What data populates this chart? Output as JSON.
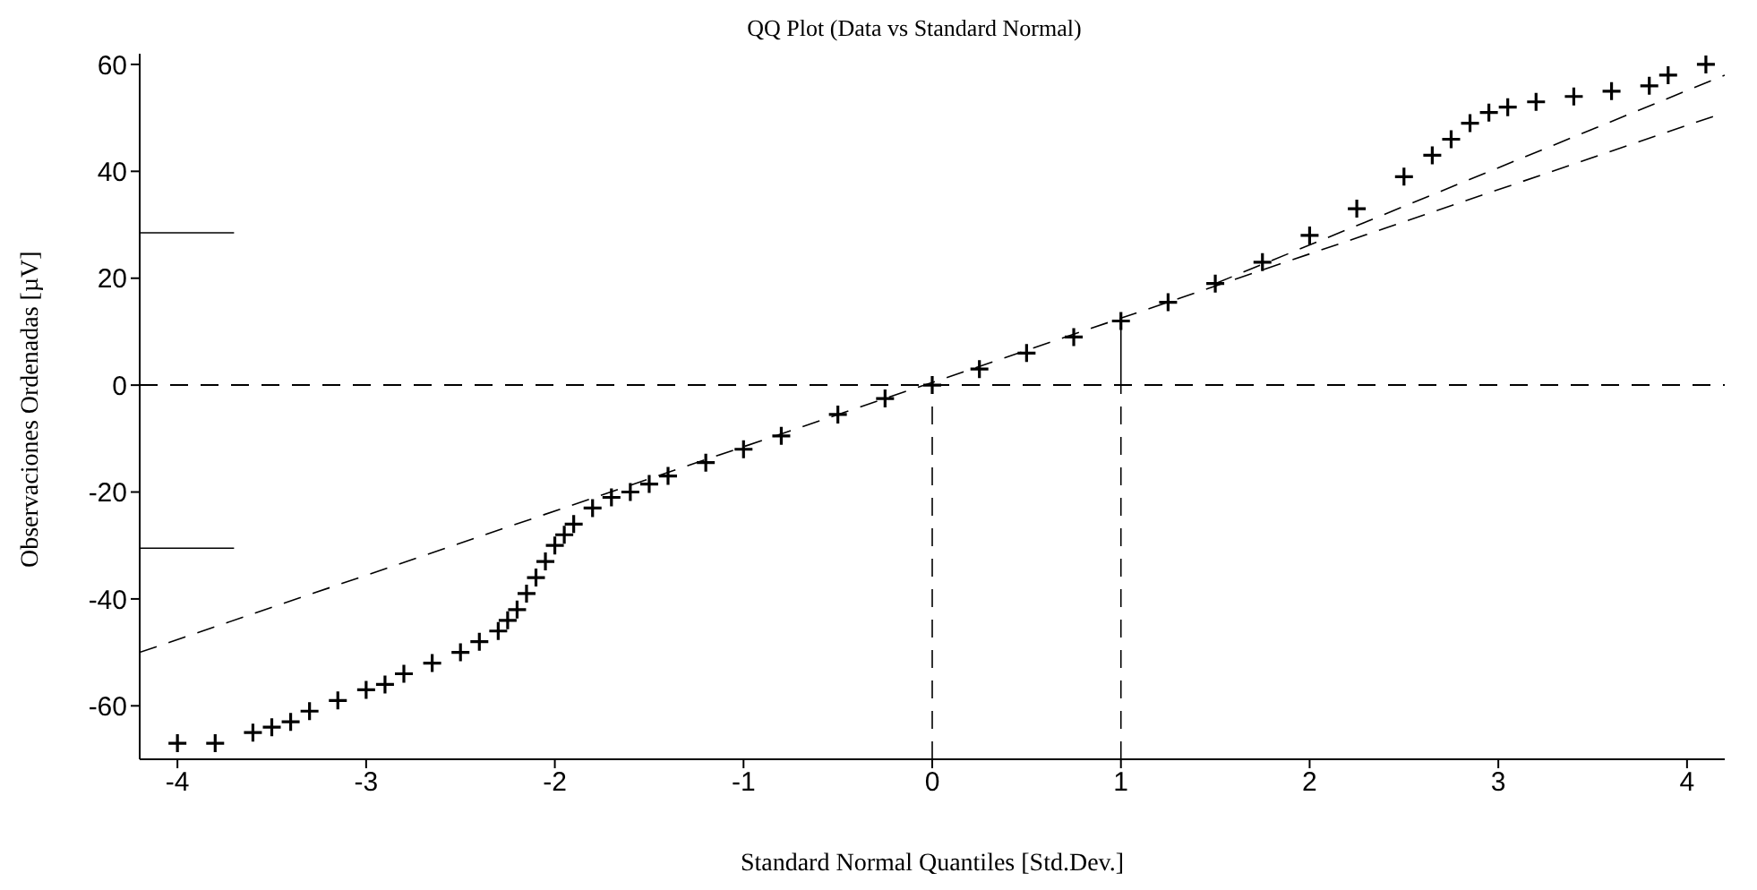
{
  "chart_data": {
    "type": "scatter",
    "title": "QQ Plot (Data vs Standard Normal)",
    "xlabel": "Standard Normal Quantiles [Std.Dev.]",
    "ylabel": "Observaciones Ordenadas [µV]",
    "x": [
      -4.0,
      -3.8,
      -3.6,
      -3.5,
      -3.4,
      -3.3,
      -3.15,
      -3.0,
      -2.9,
      -2.8,
      -2.65,
      -2.5,
      -2.4,
      -2.3,
      -2.25,
      -2.2,
      -2.15,
      -2.1,
      -2.05,
      -2.0,
      -1.95,
      -1.9,
      -1.8,
      -1.7,
      -1.6,
      -1.5,
      -1.4,
      -1.2,
      -1.0,
      -0.8,
      -0.5,
      -0.25,
      0,
      0.25,
      0.5,
      0.75,
      1.0,
      1.25,
      1.5,
      1.75,
      2.0,
      2.25,
      2.5,
      2.65,
      2.75,
      2.85,
      2.95,
      3.05,
      3.2,
      3.4,
      3.6,
      3.8,
      3.9,
      4.1
    ],
    "series": [
      {
        "color": "#000000",
        "marker": "cross",
        "values": [
          -67,
          -67,
          -65,
          -64,
          -63,
          -61,
          -59,
          -57,
          -56,
          -54,
          -52,
          -50,
          -48,
          -46,
          -44,
          -42,
          -39,
          -36,
          -33,
          -30,
          -28,
          -26,
          -23,
          -21,
          -20,
          -18.5,
          -17,
          -14.5,
          -12,
          -9.5,
          -5.5,
          -2.5,
          0,
          3,
          6,
          9,
          12,
          15.5,
          19,
          23,
          28,
          33,
          39,
          43,
          46,
          49,
          51,
          52,
          53,
          54,
          55,
          56,
          58,
          60
        ]
      },
      {
        "type": "line",
        "color": "#000000",
        "line_style": "dashed",
        "x": [
          -4.2,
          4.2
        ],
        "values": [
          -50,
          51
        ]
      },
      {
        "type": "line",
        "color": "#000000",
        "line_style": "dashed",
        "x": [
          1.5,
          4.2
        ],
        "values": [
          19,
          58
        ]
      },
      {
        "type": "line",
        "color": "#000000",
        "line_style": "dashed",
        "x": [
          0,
          0
        ],
        "values": [
          -70,
          0
        ]
      },
      {
        "type": "line",
        "color": "#000000",
        "line_style": "dashed",
        "x": [
          1,
          1
        ],
        "values": [
          -70,
          0
        ]
      },
      {
        "type": "line",
        "color": "#000000",
        "line_style": "solid",
        "x": [
          1,
          1
        ],
        "values": [
          0,
          12
        ]
      },
      {
        "type": "line",
        "color": "#000000",
        "line_style": "solid",
        "x": [
          -4.2,
          -3.7
        ],
        "values": [
          28.5,
          28.5
        ]
      },
      {
        "type": "line",
        "color": "#000000",
        "line_style": "solid",
        "x": [
          -4.2,
          -3.7
        ],
        "values": [
          -30.5,
          -30.5
        ]
      }
    ],
    "ref_lines": [
      {
        "axis": "y",
        "value": 0,
        "color": "#000000",
        "line_style": "dashed"
      }
    ],
    "xlim": [
      -4.2,
      4.2
    ],
    "xticks": [
      -4,
      -3,
      -2,
      -1,
      0,
      1,
      2,
      3,
      4
    ],
    "ylim": [
      -70,
      62
    ],
    "yticks": [
      -60,
      -40,
      -20,
      0,
      20,
      40,
      60
    ],
    "grid": false,
    "legend": false
  }
}
